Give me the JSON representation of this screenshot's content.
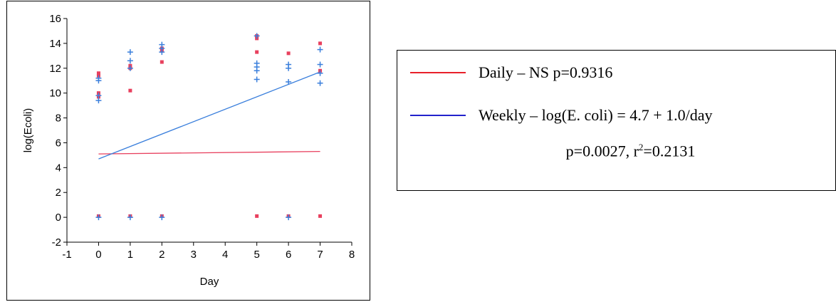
{
  "chart_data": {
    "type": "scatter",
    "title": "",
    "xlabel": "Day",
    "ylabel": "log(Ecoli)",
    "xlim": [
      -1,
      8
    ],
    "ylim": [
      -2,
      16
    ],
    "x_ticks": [
      "-1",
      "0",
      "1",
      "2",
      "3",
      "4",
      "5",
      "6",
      "7",
      "8"
    ],
    "y_ticks": [
      "-2",
      "0",
      "2",
      "4",
      "6",
      "8",
      "10",
      "12",
      "14",
      "16"
    ],
    "grid": false,
    "series": [
      {
        "name": "Daily",
        "color": "#e8405e",
        "marker": "square",
        "points": [
          [
            0,
            11.6
          ],
          [
            0,
            11.4
          ],
          [
            0,
            10.0
          ],
          [
            0,
            9.7
          ],
          [
            0,
            0.1
          ],
          [
            1,
            12.2
          ],
          [
            1,
            12.0
          ],
          [
            1,
            10.2
          ],
          [
            1,
            0.1
          ],
          [
            2,
            13.6
          ],
          [
            2,
            13.4
          ],
          [
            2,
            12.5
          ],
          [
            2,
            0.1
          ],
          [
            5,
            14.6
          ],
          [
            5,
            14.4
          ],
          [
            5,
            13.3
          ],
          [
            5,
            0.1
          ],
          [
            6,
            13.2
          ],
          [
            6,
            0.1
          ],
          [
            7,
            14.0
          ],
          [
            7,
            11.8
          ],
          [
            7,
            0.1
          ]
        ],
        "fit": {
          "x": [
            0,
            7
          ],
          "y": [
            5.1,
            5.3
          ]
        }
      },
      {
        "name": "Weekly",
        "color": "#3a7fdc",
        "marker": "plus",
        "points": [
          [
            0,
            11.2
          ],
          [
            0,
            11.0
          ],
          [
            0,
            9.8
          ],
          [
            0,
            9.4
          ],
          [
            0,
            0.0
          ],
          [
            1,
            13.3
          ],
          [
            1,
            12.6
          ],
          [
            1,
            12.0
          ],
          [
            1,
            0.0
          ],
          [
            2,
            13.9
          ],
          [
            2,
            13.6
          ],
          [
            2,
            13.3
          ],
          [
            2,
            0.0
          ],
          [
            5,
            14.6
          ],
          [
            5,
            12.4
          ],
          [
            5,
            12.1
          ],
          [
            5,
            11.8
          ],
          [
            5,
            11.1
          ],
          [
            6,
            12.3
          ],
          [
            6,
            12.0
          ],
          [
            6,
            10.9
          ],
          [
            6,
            0.0
          ],
          [
            7,
            13.5
          ],
          [
            7,
            12.3
          ],
          [
            7,
            11.6
          ],
          [
            7,
            10.8
          ]
        ],
        "fit": {
          "x": [
            0,
            7
          ],
          "y": [
            4.7,
            11.7
          ]
        }
      }
    ]
  },
  "legend": {
    "daily": {
      "text": "Daily – NS p=0.9316",
      "color": "#e8202a"
    },
    "weekly": {
      "text": "Weekly – log(E. coli) = 4.7 + 1.0/day",
      "color": "#2222cc"
    },
    "stats_prefix": "p=0.0027, r",
    "stats_sup": "2",
    "stats_suffix": "=0.2131"
  }
}
